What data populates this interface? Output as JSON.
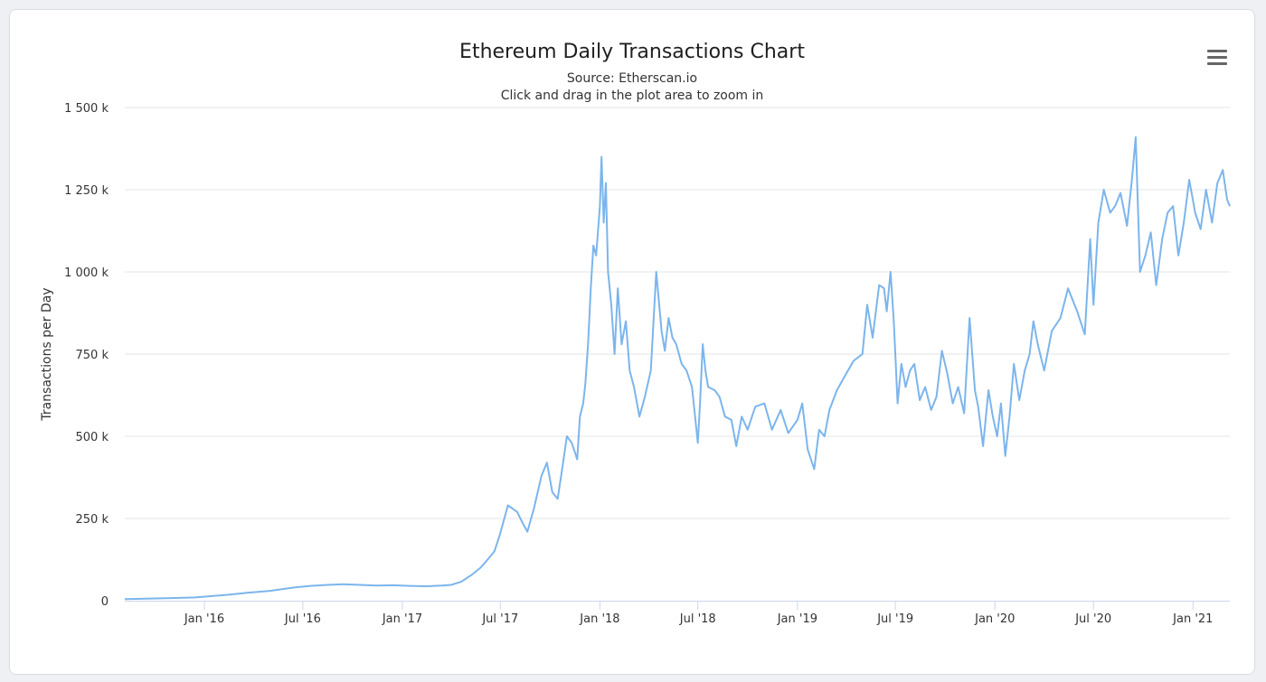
{
  "colors": {
    "series": "#7cb5ec",
    "grid": "#e6e6e6",
    "axis_line": "#ccd6eb"
  },
  "chart_data": {
    "type": "line",
    "title": "Ethereum Daily Transactions Chart",
    "subtitle": [
      "Source: Etherscan.io",
      "Click and drag in the plot area to zoom in"
    ],
    "ylabel": "Transactions per Day",
    "xlabel": "",
    "ylim": [
      0,
      1500000
    ],
    "yticks": [
      0,
      250000,
      500000,
      750000,
      1000000,
      1250000,
      1500000
    ],
    "ytick_labels": [
      "0",
      "250 k",
      "500 k",
      "750 k",
      "1 000 k",
      "1 250 k",
      "1 500 k"
    ],
    "xlim": [
      "2015-08-07",
      "2021-03-10"
    ],
    "xticks": [
      "2016-01-01",
      "2016-07-01",
      "2017-01-01",
      "2017-07-01",
      "2018-01-01",
      "2018-07-01",
      "2019-01-01",
      "2019-07-01",
      "2020-01-01",
      "2020-07-01",
      "2021-01-01"
    ],
    "xtick_labels": [
      "Jan '16",
      "Jul '16",
      "Jan '17",
      "Jul '17",
      "Jan '18",
      "Jul '18",
      "Jan '19",
      "Jul '19",
      "Jan '20",
      "Jul '20",
      "Jan '21"
    ],
    "grid": true,
    "legend": "none",
    "series": [
      {
        "dates": [
          "2015-08-07",
          "2015-09-15",
          "2015-11-01",
          "2015-12-15",
          "2016-01-15",
          "2016-02-15",
          "2016-03-20",
          "2016-05-01",
          "2016-06-15",
          "2016-07-15",
          "2016-08-15",
          "2016-09-15",
          "2016-10-15",
          "2016-11-15",
          "2016-12-15",
          "2017-01-15",
          "2017-02-15",
          "2017-03-15",
          "2017-04-01",
          "2017-04-20",
          "2017-05-10",
          "2017-05-25",
          "2017-06-05",
          "2017-06-20",
          "2017-06-30",
          "2017-07-15",
          "2017-08-01",
          "2017-08-10",
          "2017-08-20",
          "2017-09-01",
          "2017-09-15",
          "2017-09-25",
          "2017-10-05",
          "2017-10-15",
          "2017-10-25",
          "2017-11-01",
          "2017-11-10",
          "2017-11-20",
          "2017-11-25",
          "2017-12-01",
          "2017-12-05",
          "2017-12-10",
          "2017-12-15",
          "2017-12-20",
          "2017-12-25",
          "2018-01-01",
          "2018-01-04",
          "2018-01-08",
          "2018-01-12",
          "2018-01-16",
          "2018-01-22",
          "2018-01-28",
          "2018-02-03",
          "2018-02-10",
          "2018-02-18",
          "2018-02-25",
          "2018-03-05",
          "2018-03-15",
          "2018-03-25",
          "2018-04-05",
          "2018-04-15",
          "2018-04-25",
          "2018-05-01",
          "2018-05-08",
          "2018-05-15",
          "2018-05-22",
          "2018-06-01",
          "2018-06-10",
          "2018-06-20",
          "2018-07-01",
          "2018-07-05",
          "2018-07-10",
          "2018-07-15",
          "2018-07-20",
          "2018-08-01",
          "2018-08-10",
          "2018-08-20",
          "2018-09-01",
          "2018-09-10",
          "2018-09-20",
          "2018-10-01",
          "2018-10-15",
          "2018-11-01",
          "2018-11-15",
          "2018-12-01",
          "2018-12-15",
          "2019-01-01",
          "2019-01-10",
          "2019-01-20",
          "2019-02-01",
          "2019-02-10",
          "2019-02-20",
          "2019-03-01",
          "2019-03-15",
          "2019-04-01",
          "2019-04-15",
          "2019-05-01",
          "2019-05-10",
          "2019-05-20",
          "2019-06-01",
          "2019-06-10",
          "2019-06-15",
          "2019-06-22",
          "2019-06-28",
          "2019-07-05",
          "2019-07-12",
          "2019-07-20",
          "2019-07-28",
          "2019-08-05",
          "2019-08-15",
          "2019-08-25",
          "2019-09-05",
          "2019-09-15",
          "2019-09-25",
          "2019-10-05",
          "2019-10-15",
          "2019-10-25",
          "2019-11-05",
          "2019-11-15",
          "2019-11-25",
          "2019-12-01",
          "2019-12-10",
          "2019-12-20",
          "2019-12-28",
          "2020-01-05",
          "2020-01-12",
          "2020-01-20",
          "2020-01-28",
          "2020-02-05",
          "2020-02-15",
          "2020-02-25",
          "2020-03-05",
          "2020-03-12",
          "2020-03-20",
          "2020-04-01",
          "2020-04-15",
          "2020-05-01",
          "2020-05-15",
          "2020-06-01",
          "2020-06-15",
          "2020-06-25",
          "2020-07-01",
          "2020-07-10",
          "2020-07-20",
          "2020-08-01",
          "2020-08-10",
          "2020-08-20",
          "2020-09-01",
          "2020-09-10",
          "2020-09-17",
          "2020-09-25",
          "2020-10-05",
          "2020-10-15",
          "2020-10-25",
          "2020-11-05",
          "2020-11-15",
          "2020-11-25",
          "2020-12-05",
          "2020-12-15",
          "2020-12-25",
          "2021-01-05",
          "2021-01-15",
          "2021-01-25",
          "2021-02-05",
          "2021-02-15",
          "2021-02-25",
          "2021-03-05",
          "2021-03-10"
        ],
        "values": [
          5000,
          6000,
          8000,
          10000,
          14000,
          18000,
          24000,
          30000,
          40000,
          45000,
          48000,
          50000,
          48000,
          46000,
          47000,
          45000,
          44000,
          46000,
          48000,
          58000,
          80000,
          100000,
          120000,
          150000,
          200000,
          290000,
          270000,
          240000,
          210000,
          280000,
          380000,
          420000,
          330000,
          310000,
          420000,
          500000,
          480000,
          430000,
          560000,
          600000,
          660000,
          780000,
          950000,
          1080000,
          1050000,
          1200000,
          1350000,
          1150000,
          1270000,
          1000000,
          900000,
          750000,
          950000,
          780000,
          850000,
          700000,
          650000,
          560000,
          620000,
          700000,
          1000000,
          820000,
          760000,
          860000,
          800000,
          780000,
          720000,
          700000,
          650000,
          480000,
          600000,
          780000,
          700000,
          650000,
          640000,
          620000,
          560000,
          550000,
          470000,
          560000,
          520000,
          590000,
          600000,
          520000,
          580000,
          510000,
          550000,
          600000,
          460000,
          400000,
          520000,
          500000,
          580000,
          640000,
          690000,
          730000,
          750000,
          900000,
          800000,
          960000,
          950000,
          880000,
          1000000,
          850000,
          600000,
          720000,
          650000,
          700000,
          720000,
          610000,
          650000,
          580000,
          620000,
          760000,
          690000,
          600000,
          650000,
          570000,
          860000,
          640000,
          590000,
          470000,
          640000,
          560000,
          500000,
          600000,
          440000,
          560000,
          720000,
          610000,
          700000,
          750000,
          850000,
          780000,
          700000,
          820000,
          860000,
          950000,
          880000,
          810000,
          1100000,
          900000,
          1150000,
          1250000,
          1180000,
          1200000,
          1240000,
          1140000,
          1280000,
          1410000,
          1000000,
          1050000,
          1120000,
          960000,
          1100000,
          1180000,
          1200000,
          1050000,
          1150000,
          1280000,
          1180000,
          1130000,
          1250000,
          1150000,
          1270000,
          1310000,
          1220000,
          1200000
        ]
      }
    ]
  }
}
